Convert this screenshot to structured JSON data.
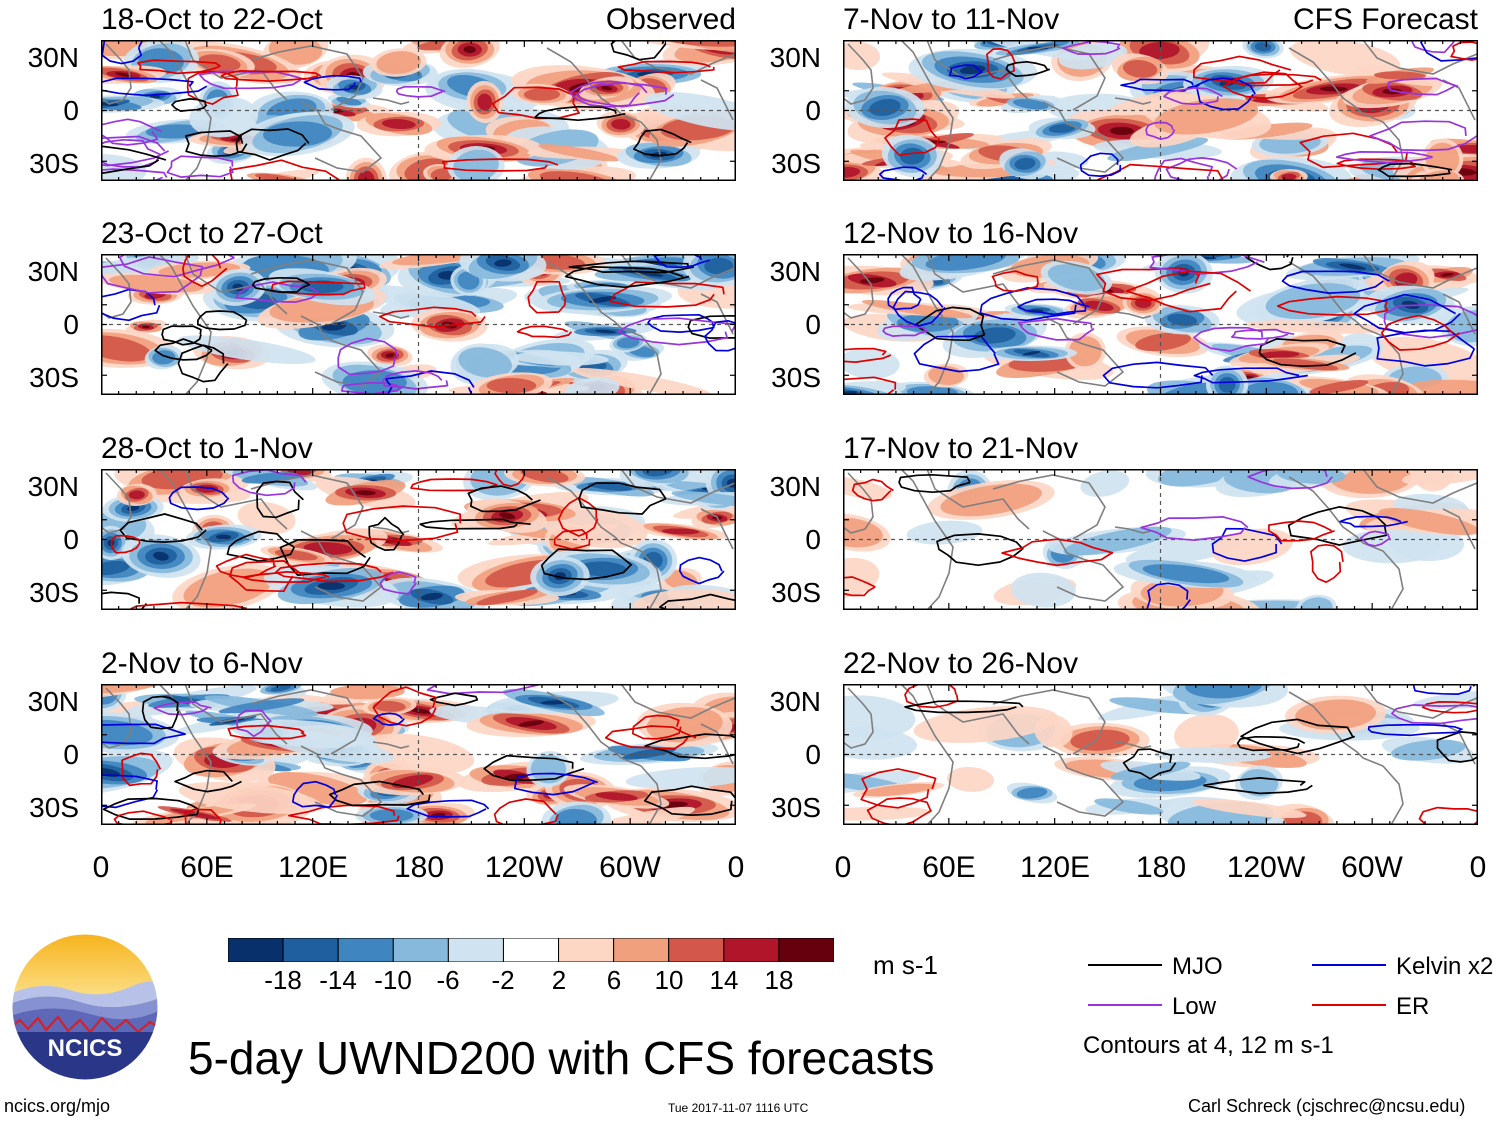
{
  "chart_data": {
    "type": "heatmap",
    "title": "5-day UWND200 with CFS forecasts",
    "units": "m s-1",
    "x_ticks": [
      "0",
      "60E",
      "120E",
      "180",
      "120W",
      "60W",
      "0"
    ],
    "y_ticks": [
      "30N",
      "0",
      "30S"
    ],
    "columns": [
      {
        "header_right": "Observed",
        "panels": [
          "18-Oct to 22-Oct",
          "23-Oct to 27-Oct",
          "28-Oct to 1-Nov",
          "2-Nov to 6-Nov"
        ]
      },
      {
        "header_right": "CFS Forecast",
        "panels": [
          "7-Nov to 11-Nov",
          "12-Nov to 16-Nov",
          "17-Nov to 21-Nov",
          "22-Nov to 26-Nov"
        ]
      }
    ],
    "colorbar": {
      "ticks": [
        "-18",
        "-14",
        "-10",
        "-6",
        "-2",
        "2",
        "6",
        "10",
        "14",
        "18"
      ],
      "colors": [
        "#08306b",
        "#1f5fa0",
        "#3f86c0",
        "#86b9dc",
        "#cfe3f0",
        "#ffffff",
        "#fdd6c4",
        "#f1a07e",
        "#d3574a",
        "#b0152a",
        "#67000d"
      ]
    },
    "legend": {
      "items": [
        {
          "label": "MJO",
          "color": "#000000"
        },
        {
          "label": "Kelvin x2",
          "color": "#0000dd"
        },
        {
          "label": "Low",
          "color": "#9933dd"
        },
        {
          "label": "ER",
          "color": "#dd0000"
        }
      ],
      "note": "Contours at 4, 12 m s-1"
    }
  },
  "branding": {
    "logo_text": "NCICS",
    "site": "ncics.org/mjo",
    "timestamp": "Tue 2017-11-07 1116 UTC",
    "author": "Carl Schreck (cjschrec@ncsu.edu)"
  }
}
